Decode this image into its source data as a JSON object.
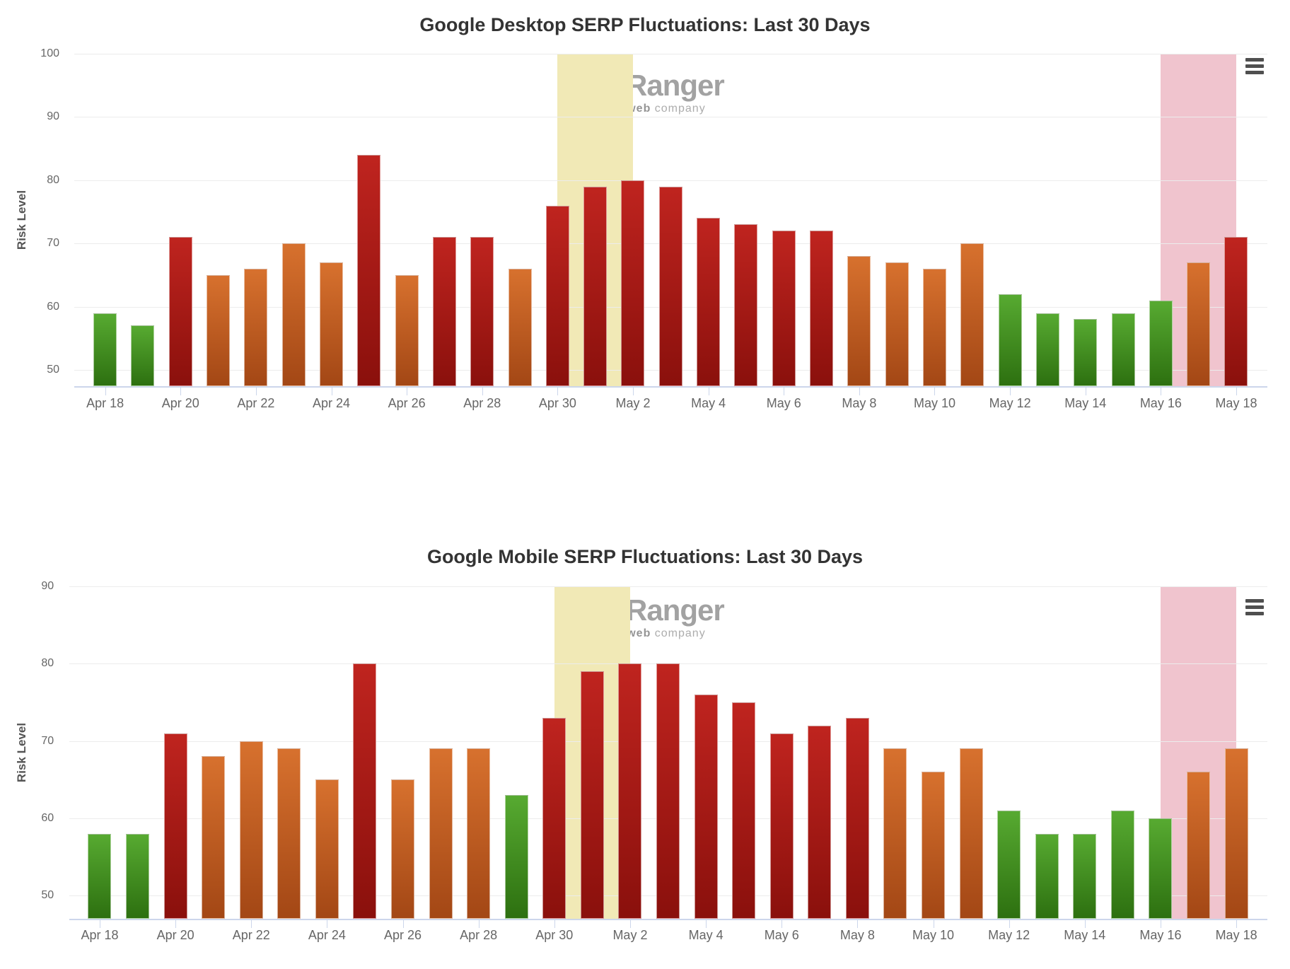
{
  "page": {
    "background": "#ffffff"
  },
  "colors": {
    "green_top": "#57aa31",
    "green_bottom": "#2d7010",
    "orange_top": "#d7712e",
    "orange_bottom": "#a34715",
    "red_top": "#bf241f",
    "red_bottom": "#8a100c",
    "band_yellow": "#f1e9b6",
    "band_pink": "#f0c4ce",
    "gridline": "#ececec",
    "axis_line": "#ccd6eb",
    "title": "#333333",
    "axis_label": "#666666",
    "axis_title": "#555555",
    "hamburger": "#4f4f4f",
    "watermark_blue": "#8093c8",
    "watermark_gray": "#9b9b9b"
  },
  "color_rules": [
    {
      "max": 63,
      "key": "green"
    },
    {
      "max": 70,
      "key": "orange"
    },
    {
      "max": 100,
      "key": "red"
    }
  ],
  "charts": [
    {
      "title": "Google Desktop SERP Fluctuations: Last 30 Days",
      "watermark": {
        "brand_lead": "R",
        "brand_rest": "ankRanger",
        "tagline_a": "a ",
        "tagline_bold": "similarweb",
        "tagline_rest": " company"
      },
      "chart_data": {
        "type": "bar",
        "title": "Google Desktop SERP Fluctuations: Last 30 Days",
        "xlabel": "",
        "ylabel": "Risk Level",
        "ylim": [
          50,
          100
        ],
        "y_ticks": [
          50,
          60,
          70,
          80,
          90,
          100
        ],
        "grid": true,
        "legend": false,
        "categories": [
          "Apr 18",
          "Apr 19",
          "Apr 20",
          "Apr 21",
          "Apr 22",
          "Apr 23",
          "Apr 24",
          "Apr 25",
          "Apr 26",
          "Apr 27",
          "Apr 28",
          "Apr 29",
          "Apr 30",
          "May 1",
          "May 2",
          "May 3",
          "May 4",
          "May 5",
          "May 6",
          "May 7",
          "May 8",
          "May 9",
          "May 10",
          "May 11",
          "May 12",
          "May 13",
          "May 14",
          "May 15",
          "May 16",
          "May 17",
          "May 18"
        ],
        "values": [
          59,
          57,
          71,
          65,
          66,
          70,
          67,
          84,
          65,
          71,
          71,
          66,
          76,
          79,
          80,
          79,
          74,
          73,
          72,
          72,
          68,
          67,
          66,
          70,
          62,
          59,
          58,
          59,
          61,
          67,
          71
        ],
        "x_tick_labels": [
          "Apr 18",
          "Apr 20",
          "Apr 22",
          "Apr 24",
          "Apr 26",
          "Apr 28",
          "Apr 30",
          "May 2",
          "May 4",
          "May 6",
          "May 8",
          "May 10",
          "May 12",
          "May 14",
          "May 16",
          "May 18"
        ],
        "plot_bands": [
          {
            "from": "Apr 30",
            "to": "May 2",
            "color_key": "band_yellow"
          },
          {
            "from": "May 16",
            "to": "May 18",
            "color_key": "band_pink"
          }
        ]
      }
    },
    {
      "title": "Google Mobile SERP Fluctuations: Last 30 Days",
      "watermark": {
        "brand_lead": "R",
        "brand_rest": "ankRanger",
        "tagline_a": "a ",
        "tagline_bold": "similarweb",
        "tagline_rest": " company"
      },
      "chart_data": {
        "type": "bar",
        "title": "Google Mobile SERP Fluctuations: Last 30 Days",
        "xlabel": "",
        "ylabel": "Risk Level",
        "ylim": [
          50,
          90
        ],
        "y_ticks": [
          50,
          60,
          70,
          80,
          90
        ],
        "grid": true,
        "legend": false,
        "categories": [
          "Apr 18",
          "Apr 19",
          "Apr 20",
          "Apr 21",
          "Apr 22",
          "Apr 23",
          "Apr 24",
          "Apr 25",
          "Apr 26",
          "Apr 27",
          "Apr 28",
          "Apr 29",
          "Apr 30",
          "May 1",
          "May 2",
          "May 3",
          "May 4",
          "May 5",
          "May 6",
          "May 7",
          "May 8",
          "May 9",
          "May 10",
          "May 11",
          "May 12",
          "May 13",
          "May 14",
          "May 15",
          "May 16",
          "May 17",
          "May 18"
        ],
        "values": [
          58,
          58,
          71,
          68,
          70,
          69,
          65,
          80,
          65,
          69,
          69,
          63,
          73,
          79,
          80,
          80,
          76,
          75,
          71,
          72,
          73,
          69,
          66,
          69,
          61,
          58,
          58,
          61,
          60,
          66,
          69
        ],
        "x_tick_labels": [
          "Apr 18",
          "Apr 20",
          "Apr 22",
          "Apr 24",
          "Apr 26",
          "Apr 28",
          "Apr 30",
          "May 2",
          "May 4",
          "May 6",
          "May 8",
          "May 10",
          "May 12",
          "May 14",
          "May 16",
          "May 18"
        ],
        "plot_bands": [
          {
            "from": "Apr 30",
            "to": "May 2",
            "color_key": "band_yellow"
          },
          {
            "from": "May 16",
            "to": "May 18",
            "color_key": "band_pink"
          }
        ]
      }
    }
  ]
}
